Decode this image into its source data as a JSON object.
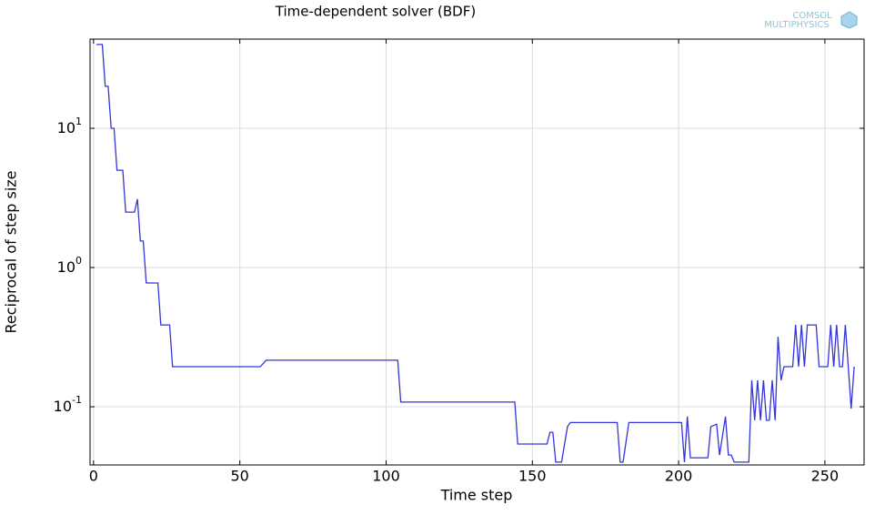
{
  "logo": [
    "COMSOL",
    "MULTIPHYSICS"
  ],
  "chart_data": {
    "type": "line",
    "title": "Time-dependent solver (BDF)",
    "xlabel": "Time step",
    "ylabel": "Reciprocal of step size",
    "xlim": [
      -1.2,
      263.4
    ],
    "xticks": [
      0,
      50,
      100,
      150,
      200,
      250
    ],
    "ylim": [
      0.0382,
      43.7
    ],
    "log_y": true,
    "grid": true,
    "yticks": [
      {
        "value": 0.1,
        "label": "10^-1"
      },
      {
        "value": 1,
        "label": "10^0"
      },
      {
        "value": 10,
        "label": "10^1"
      }
    ],
    "x": [
      1,
      3,
      4,
      5,
      6,
      7,
      8,
      10,
      11,
      14,
      15,
      16,
      17,
      18,
      22,
      23,
      26,
      27,
      57,
      59,
      104,
      105,
      144,
      145,
      155,
      156,
      157,
      158,
      160,
      162,
      163,
      179,
      180,
      181,
      183,
      201,
      202,
      203,
      204,
      210,
      211,
      213,
      214,
      216,
      217,
      218,
      219,
      224,
      225,
      226,
      227,
      228,
      229,
      230,
      231,
      232,
      233,
      234,
      235,
      236,
      239,
      240,
      241,
      242,
      243,
      244,
      247,
      248,
      251,
      252,
      253,
      254,
      255,
      256,
      257,
      259,
      260
    ],
    "series": [
      {
        "name": "Reciprocal of step size",
        "color": "#3434dc",
        "values": [
          40,
          40,
          20,
          20,
          10,
          10,
          5,
          5,
          2.5,
          2.5,
          3.1,
          1.55,
          1.55,
          0.775,
          0.775,
          0.387,
          0.387,
          0.194,
          0.194,
          0.216,
          0.216,
          0.108,
          0.108,
          0.054,
          0.054,
          0.0656,
          0.0656,
          0.04,
          0.04,
          0.072,
          0.077,
          0.077,
          0.04,
          0.04,
          0.077,
          0.077,
          0.04,
          0.085,
          0.043,
          0.043,
          0.072,
          0.075,
          0.045,
          0.085,
          0.045,
          0.045,
          0.04,
          0.04,
          0.155,
          0.08,
          0.155,
          0.08,
          0.155,
          0.08,
          0.08,
          0.155,
          0.08,
          0.318,
          0.155,
          0.194,
          0.194,
          0.387,
          0.194,
          0.387,
          0.194,
          0.387,
          0.387,
          0.194,
          0.194,
          0.387,
          0.194,
          0.387,
          0.194,
          0.194,
          0.387,
          0.097,
          0.194
        ]
      }
    ]
  }
}
